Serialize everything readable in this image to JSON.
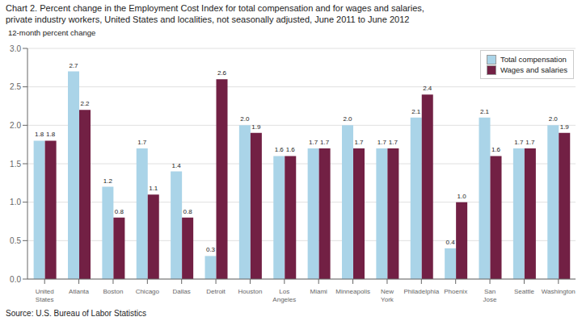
{
  "chart_data": {
    "type": "bar",
    "title": "Chart 2. Percent change in the Employment Cost Index for total compensation and for wages and salaries,",
    "subtitle": "private industry workers, United States and localities, not seasonally adjusted, June 2011 to June 2012",
    "ylabel": "12-month percent change",
    "annotations": [
      "Source: U.S. Bureau of Labor Statistics"
    ],
    "categories": [
      "United\nStates",
      "Atlanta",
      "Boston",
      "Chicago",
      "Dallas",
      "Detroit",
      "Houston",
      "Los\nAngeles",
      "Miami",
      "Minneapolis",
      "New\nYork",
      "Philadelphia",
      "Phoenix",
      "San\nJose",
      "Seattle",
      "Washington"
    ],
    "series": [
      {
        "name": "Total compensation",
        "color": "#aad4e8",
        "values": [
          1.8,
          2.7,
          1.2,
          1.7,
          1.4,
          0.3,
          2.0,
          1.6,
          1.7,
          2.0,
          1.7,
          2.1,
          0.4,
          2.1,
          1.7,
          2.0
        ],
        "value_labels": [
          "1.8",
          "2.7",
          "1.2",
          "1.7",
          "1.4",
          "0.3",
          "2.0",
          "1.6",
          "1.7",
          "2.0",
          "1.7",
          "2.1",
          "0.4",
          "2.1",
          "1.7",
          "2.0"
        ]
      },
      {
        "name": "Wages and salaries",
        "color": "#722044",
        "values": [
          1.8,
          2.2,
          0.8,
          1.1,
          0.8,
          2.6,
          1.9,
          1.6,
          1.7,
          1.7,
          1.7,
          2.4,
          1.0,
          1.6,
          1.7,
          1.9
        ],
        "value_labels": [
          "1.8",
          "2.2",
          "0.8",
          "1.1",
          "0.8",
          "2.6",
          "1.9",
          "1.6",
          "1.7",
          "1.7",
          "1.7",
          "2.4",
          "1.0",
          "1.6",
          "1.7",
          "1.9"
        ]
      }
    ],
    "ylim": [
      0.0,
      3.0
    ],
    "yticks": [
      {
        "value": 0,
        "label": "0.0"
      },
      0.5,
      {
        "value": 1,
        "label": "1.0"
      },
      1.5,
      {
        "value": 2,
        "label": "2.0"
      },
      2.5,
      {
        "value": 3,
        "label": "3.0"
      }
    ],
    "grid": true,
    "legend": "upper right",
    "data_labels": true
  }
}
